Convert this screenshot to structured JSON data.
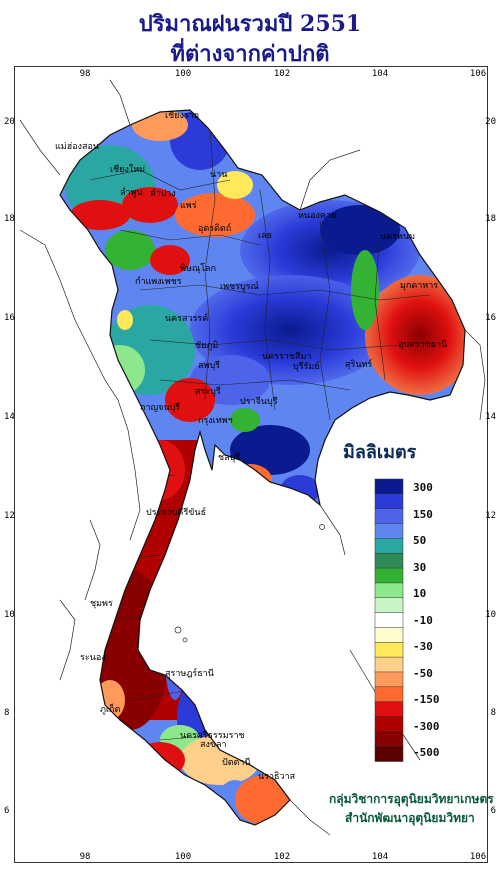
{
  "title": {
    "line1": "ปริมาณฝนรวมปี  2551",
    "line2": "ที่ต่างจากค่าปกติ"
  },
  "axes": {
    "longitude_ticks": [
      "98",
      "100",
      "102",
      "104",
      "106"
    ],
    "latitude_ticks": [
      "20",
      "18",
      "16",
      "14",
      "12",
      "10",
      "8",
      "6"
    ]
  },
  "legend": {
    "title": "มิลลิเมตร",
    "labels": [
      "300",
      "150",
      "50",
      "30",
      "10",
      "-10",
      "-30",
      "-50",
      "-150",
      "-300",
      "-500"
    ],
    "colors": [
      "#0a1a8f",
      "#2a3bd8",
      "#4d63ea",
      "#5f86f0",
      "#2aa7a2",
      "#2e8b57",
      "#33b233",
      "#8de88d",
      "#c7f5c7",
      "#ffffff",
      "#fffdd0",
      "#ffe85a",
      "#ffd08a",
      "#ff9a5a",
      "#ff6a30",
      "#e01010",
      "#b00000",
      "#8a0000",
      "#5a0000"
    ]
  },
  "cities": [
    "เชียงราย",
    "แม่ฮ่องสอน",
    "เชียงใหม่",
    "ลำปาง",
    "น่าน",
    "แพร่",
    "ลำพูน",
    "อุตรดิตถ์",
    "หนองคาย",
    "นครพนม",
    "เลย",
    "พิษณุโลก",
    "กำแพงเพชร",
    "เพชรบูรณ์",
    "มุกดาหาร",
    "นครสวรรค์",
    "อุบลราชธานี",
    "นครราชสีมา",
    "บุรีรัมย์",
    "สุรินทร์",
    "ชัยภูมิ",
    "กาญจนบุรี",
    "ลพบุรี",
    "สระบุรี",
    "ปราจีนบุรี",
    "กรุงเทพฯ",
    "ชลบุรี",
    "ประจวบคีรีขันธ์",
    "ชุมพร",
    "ระนอง",
    "สุราษฎร์ธานี",
    "ภูเก็ต",
    "นครศรีธรรมราช",
    "สงขลา",
    "ปัตตานี",
    "นราธิวาส"
  ],
  "credit": {
    "line1": "กลุ่มวิชาการอุตุนิยมวิทยาเกษตร",
    "line2": "สำนักพัฒนาอุตุนิยมวิทยา"
  }
}
